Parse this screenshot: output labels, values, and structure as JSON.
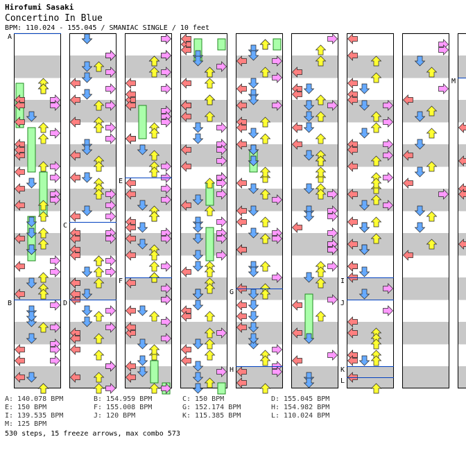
{
  "header": {
    "artist": "Hirofumi Sasaki",
    "title": "Concertino In Blue",
    "bpm_line": "BPM: 110.024 - 155.045 / SMANIAC SINGLE / 10 feet"
  },
  "chart_data": {
    "type": "step-chart",
    "columns": 9,
    "measures_per_column": 8,
    "lanes": [
      "left",
      "down",
      "up",
      "right"
    ],
    "lane_colors": {
      "left": "#ff8080",
      "down": "#66aaff",
      "up": "#ffff33",
      "right": "#ff99ff"
    },
    "freeze_color": "#aaffaa",
    "section_markers": [
      {
        "label": "A",
        "column": 0,
        "beat": 0
      },
      {
        "label": "B",
        "column": 0,
        "beat": 24
      },
      {
        "label": "C",
        "column": 1,
        "beat": 17
      },
      {
        "label": "D",
        "column": 1,
        "beat": 24
      },
      {
        "label": "E",
        "column": 2,
        "beat": 13
      },
      {
        "label": "F",
        "column": 2,
        "beat": 22
      },
      {
        "label": "G",
        "column": 4,
        "beat": 23
      },
      {
        "label": "H",
        "column": 4,
        "beat": 30
      },
      {
        "label": "I",
        "column": 6,
        "beat": 22
      },
      {
        "label": "J",
        "column": 6,
        "beat": 24
      },
      {
        "label": "K",
        "column": 6,
        "beat": 30
      },
      {
        "label": "L",
        "column": 6,
        "beat": 31
      },
      {
        "label": "M",
        "column": 8,
        "beat": 4
      }
    ],
    "freezes": [
      {
        "column": 0,
        "lane": 0,
        "from": 4,
        "to": 8
      },
      {
        "column": 0,
        "lane": 1,
        "from": 8,
        "to": 12
      },
      {
        "column": 0,
        "lane": 2,
        "from": 12,
        "to": 16
      },
      {
        "column": 0,
        "lane": 1,
        "from": 16,
        "to": 20
      },
      {
        "column": 2,
        "lane": 1,
        "from": 6,
        "to": 9
      },
      {
        "column": 2,
        "lane": 2,
        "from": 29,
        "to": 31
      },
      {
        "column": 2,
        "lane": 3,
        "from": 31,
        "to": 32
      },
      {
        "column": 3,
        "lane": 1,
        "from": 0,
        "to": 2
      },
      {
        "column": 3,
        "lane": 3,
        "from": 0,
        "to": 1
      },
      {
        "column": 3,
        "lane": 2,
        "from": 13,
        "to": 15
      },
      {
        "column": 3,
        "lane": 2,
        "from": 17,
        "to": 20
      },
      {
        "column": 3,
        "lane": 3,
        "from": 31,
        "to": 32
      },
      {
        "column": 4,
        "lane": 3,
        "from": 0,
        "to": 1
      },
      {
        "column": 4,
        "lane": 1,
        "from": 10,
        "to": 12
      },
      {
        "column": 5,
        "lane": 1,
        "from": 23,
        "to": 27
      }
    ],
    "step_density": [
      [
        0,
        0,
        0,
        0,
        10,
        6,
        6,
        5,
        6,
        6,
        6,
        6,
        5,
        6,
        6,
        6,
        5,
        6,
        6,
        6,
        5,
        6,
        6,
        6,
        6,
        6,
        6,
        6,
        6,
        6,
        6,
        6
      ],
      [
        6,
        6,
        6,
        6,
        6,
        6,
        6,
        6,
        6,
        6,
        6,
        6,
        6,
        6,
        6,
        6,
        6,
        6,
        6,
        6,
        8,
        8,
        8,
        8,
        6,
        6,
        6,
        6,
        6,
        6,
        6,
        6
      ],
      [
        6,
        6,
        6,
        6,
        6,
        6,
        6,
        6,
        6,
        6,
        6,
        6,
        6,
        6,
        6,
        6,
        8,
        8,
        8,
        8,
        6,
        6,
        6,
        6,
        6,
        6,
        6,
        6,
        6,
        6,
        6,
        6
      ],
      [
        6,
        6,
        6,
        6,
        6,
        6,
        6,
        6,
        6,
        6,
        6,
        6,
        6,
        6,
        6,
        6,
        6,
        6,
        6,
        6,
        6,
        6,
        6,
        6,
        6,
        6,
        6,
        6,
        6,
        6,
        6,
        6
      ],
      [
        6,
        6,
        6,
        6,
        6,
        6,
        6,
        6,
        6,
        6,
        6,
        6,
        6,
        6,
        6,
        6,
        6,
        6,
        6,
        6,
        6,
        6,
        6,
        6,
        6,
        6,
        6,
        6,
        6,
        6,
        6,
        6
      ],
      [
        4,
        4,
        4,
        4,
        6,
        6,
        6,
        6,
        6,
        6,
        6,
        6,
        6,
        6,
        6,
        6,
        6,
        6,
        6,
        6,
        6,
        6,
        4,
        4,
        4,
        4,
        4,
        4,
        4,
        4,
        4,
        4
      ],
      [
        4,
        4,
        4,
        4,
        6,
        6,
        6,
        6,
        6,
        6,
        6,
        6,
        6,
        6,
        6,
        6,
        6,
        6,
        6,
        6,
        6,
        6,
        4,
        4,
        4,
        4,
        6,
        6,
        8,
        8,
        4,
        4
      ],
      [
        3,
        3,
        3,
        3,
        3,
        3,
        3,
        3,
        2,
        2,
        2,
        2,
        2,
        2,
        2,
        2,
        2,
        2,
        2,
        2,
        0,
        0,
        0,
        0,
        0,
        0,
        0,
        0,
        0,
        0,
        0,
        0
      ],
      [
        0,
        0,
        0,
        0,
        3,
        3,
        3,
        3,
        3,
        3,
        3,
        3,
        2,
        2,
        2,
        2,
        2,
        2,
        2,
        2,
        0,
        0,
        0,
        0,
        0,
        0,
        0,
        0,
        0,
        0,
        0,
        0
      ]
    ],
    "bpm_legend": [
      {
        "row": 0,
        "col": 0,
        "text": "A: 140.078 BPM"
      },
      {
        "row": 0,
        "col": 1,
        "text": "B: 154.959 BPM"
      },
      {
        "row": 0,
        "col": 2,
        "text": "C: 150 BPM"
      },
      {
        "row": 0,
        "col": 3,
        "text": "D: 155.045 BPM"
      },
      {
        "row": 1,
        "col": 0,
        "text": "E: 150 BPM"
      },
      {
        "row": 1,
        "col": 1,
        "text": "F: 155.008 BPM"
      },
      {
        "row": 1,
        "col": 2,
        "text": "G: 152.174 BPM"
      },
      {
        "row": 1,
        "col": 3,
        "text": "H: 154.982 BPM"
      },
      {
        "row": 2,
        "col": 0,
        "text": "I: 139.535 BPM"
      },
      {
        "row": 2,
        "col": 1,
        "text": "J: 120 BPM"
      },
      {
        "row": 2,
        "col": 2,
        "text": "K: 115.385 BPM"
      },
      {
        "row": 2,
        "col": 3,
        "text": "L: 110.024 BPM"
      },
      {
        "row": 3,
        "col": 0,
        "text": "M: 125 BPM"
      }
    ],
    "summary": "530 steps, 15 freeze arrows, max combo 573"
  }
}
